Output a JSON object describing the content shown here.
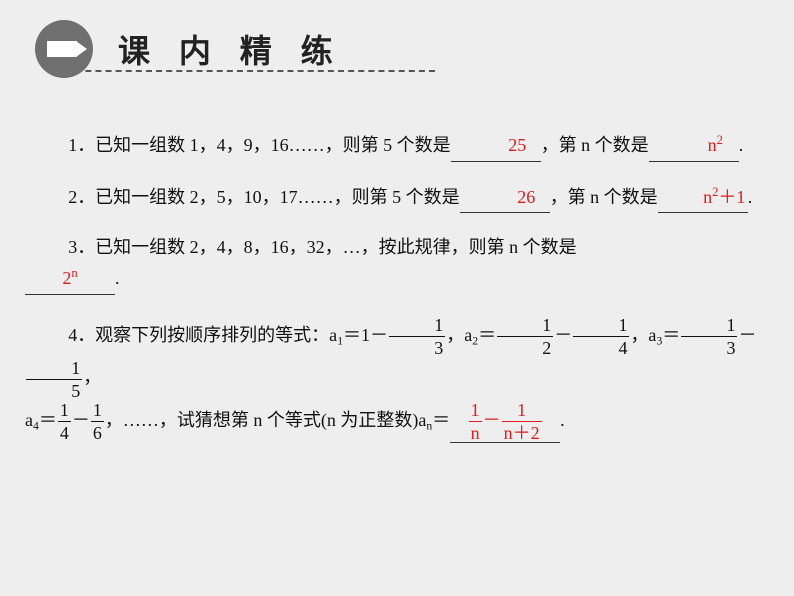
{
  "header": {
    "title": "课 内 精 练"
  },
  "problems": {
    "p1": {
      "prefix": "1．已知一组数 1，4，9，16……，则第 5 个数是",
      "ans1": "25",
      "mid": "，第 n 个数是",
      "ans2_base": "n",
      "ans2_sup": "2",
      "suffix": "."
    },
    "p2": {
      "prefix": "2．已知一组数 2，5，10，17……，则第 5 个数是",
      "ans1": "26",
      "mid": "，第 n 个数是",
      "ans2_base": "n",
      "ans2_sup": "2",
      "ans2_rest": "＋1",
      "suffix": "."
    },
    "p3": {
      "prefix": "3．已知一组数 2，4，8，16，32，…，按此规律，则第 n 个数是",
      "ans_base": "2",
      "ans_sup": "n",
      "suffix": "."
    },
    "p4": {
      "prefix": "4．观察下列按顺序排列的等式：a",
      "sub1": "1",
      "eq": "＝1－",
      "f1n": "1",
      "f1d": "3",
      "comma": "，a",
      "sub2": "2",
      "eq2": "＝",
      "f2n": "1",
      "f2d": "2",
      "minus": "－",
      "f3n": "1",
      "f3d": "4",
      "sub3": "3",
      "f4n": "1",
      "f4d": "3",
      "f5n": "1",
      "f5d": "5",
      "sub4": "4",
      "f6n": "1",
      "f6d": "4",
      "f7n": "1",
      "f7d": "6",
      "tail1": "，……，试猜想第 n 个等式(n 为正整数)a",
      "subN": "n",
      "tail2": "＝",
      "ans_f1n": "1",
      "ans_f1d": "n",
      "ans_minus": "－",
      "ans_f2n": "1",
      "ans_f2d": "n＋2",
      "period": "."
    }
  }
}
